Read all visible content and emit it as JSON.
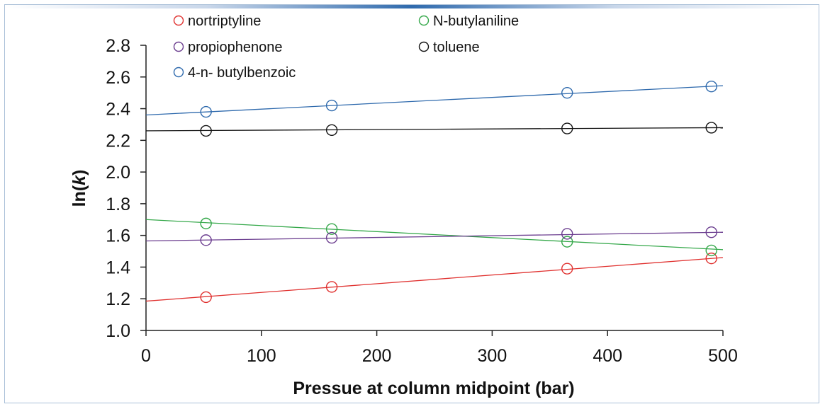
{
  "chart_data": {
    "type": "scatter",
    "title": "",
    "xlabel": "Pressue at column midpoint (bar)",
    "ylabel_prefix": "ln(",
    "ylabel_var": "k",
    "ylabel_suffix": ")",
    "xlim": [
      0,
      500
    ],
    "ylim": [
      1.0,
      2.8
    ],
    "xticks": [
      0,
      100,
      200,
      300,
      400,
      500
    ],
    "xtick_labels": [
      "0",
      "100",
      "200",
      "300",
      "400",
      "500"
    ],
    "yticks": [
      1.0,
      1.2,
      1.4,
      1.6,
      1.8,
      2.0,
      2.2,
      2.4,
      2.6,
      2.8
    ],
    "ytick_labels": [
      "1.0",
      "1.2",
      "1.4",
      "1.6",
      "1.8",
      "2.0",
      "2.2",
      "2.4",
      "2.6",
      "2.8"
    ],
    "grid": false,
    "legend_position": "top",
    "series": [
      {
        "name": "nortriptyline",
        "color": "#e0312f",
        "x": [
          52,
          161,
          365,
          490
        ],
        "y": [
          1.21,
          1.275,
          1.39,
          1.455
        ],
        "fit": {
          "x": [
            0,
            500
          ],
          "y": [
            1.185,
            1.46
          ]
        }
      },
      {
        "name": "N-butylaniline",
        "color": "#35a84a",
        "x": [
          52,
          161,
          365,
          490
        ],
        "y": [
          1.675,
          1.64,
          1.56,
          1.505
        ],
        "fit": {
          "x": [
            0,
            500
          ],
          "y": [
            1.7,
            1.51
          ]
        }
      },
      {
        "name": "propiophenone",
        "color": "#6b3d8f",
        "x": [
          52,
          161,
          365,
          490
        ],
        "y": [
          1.57,
          1.585,
          1.61,
          1.62
        ],
        "fit": {
          "x": [
            0,
            500
          ],
          "y": [
            1.565,
            1.62
          ]
        }
      },
      {
        "name": "toluene",
        "color": "#111111",
        "x": [
          52,
          161,
          365,
          490
        ],
        "y": [
          2.26,
          2.265,
          2.275,
          2.28
        ],
        "fit": {
          "x": [
            0,
            500
          ],
          "y": [
            2.26,
            2.28
          ]
        }
      },
      {
        "name": "4-n- butylbenzoic",
        "color": "#2f6aad",
        "x": [
          52,
          161,
          365,
          490
        ],
        "y": [
          2.38,
          2.42,
          2.5,
          2.54
        ],
        "fit": {
          "x": [
            0,
            500
          ],
          "y": [
            2.36,
            2.545
          ]
        }
      }
    ]
  }
}
